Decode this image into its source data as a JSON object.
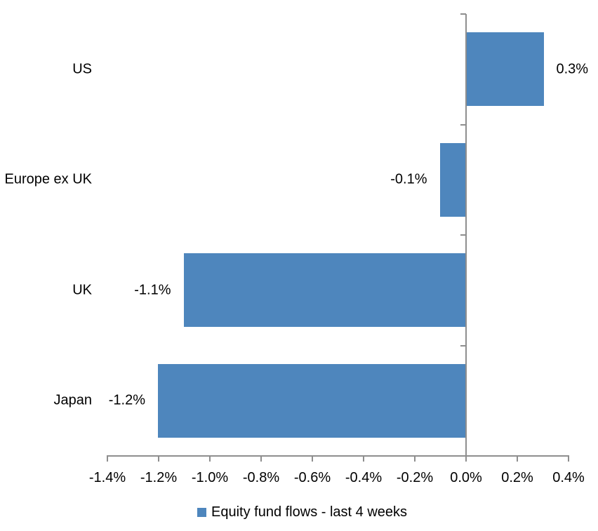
{
  "chart_data": {
    "type": "bar",
    "orientation": "horizontal",
    "categories": [
      "US",
      "Europe ex UK",
      "UK",
      "Japan"
    ],
    "values": [
      0.3,
      -0.1,
      -1.1,
      -1.2
    ],
    "data_labels": [
      "0.3%",
      "-0.1%",
      "-1.1%",
      "-1.2%"
    ],
    "series": [
      {
        "name": "Equity fund flows - last 4 weeks",
        "values": [
          0.3,
          -0.1,
          -1.1,
          -1.2
        ]
      }
    ],
    "title": "",
    "xlabel": "",
    "ylabel": "",
    "xlim": [
      -1.4,
      0.4
    ],
    "x_ticks": [
      -1.4,
      -1.2,
      -1.0,
      -0.8,
      -0.6,
      -0.4,
      -0.2,
      0.0,
      0.2,
      0.4
    ],
    "x_tick_labels": [
      "-1.4%",
      "-1.2%",
      "-1.0%",
      "-0.8%",
      "-0.6%",
      "-0.4%",
      "-0.2%",
      "0.0%",
      "0.2%",
      "0.4%"
    ],
    "grid": false,
    "legend_position": "bottom",
    "legend_label": "Equity fund flows - last 4 weeks",
    "bar_color": "#4E86BD",
    "axis_color": "#8E8E8E",
    "text_color": "#000000",
    "background_color": "#FFFFFF"
  }
}
